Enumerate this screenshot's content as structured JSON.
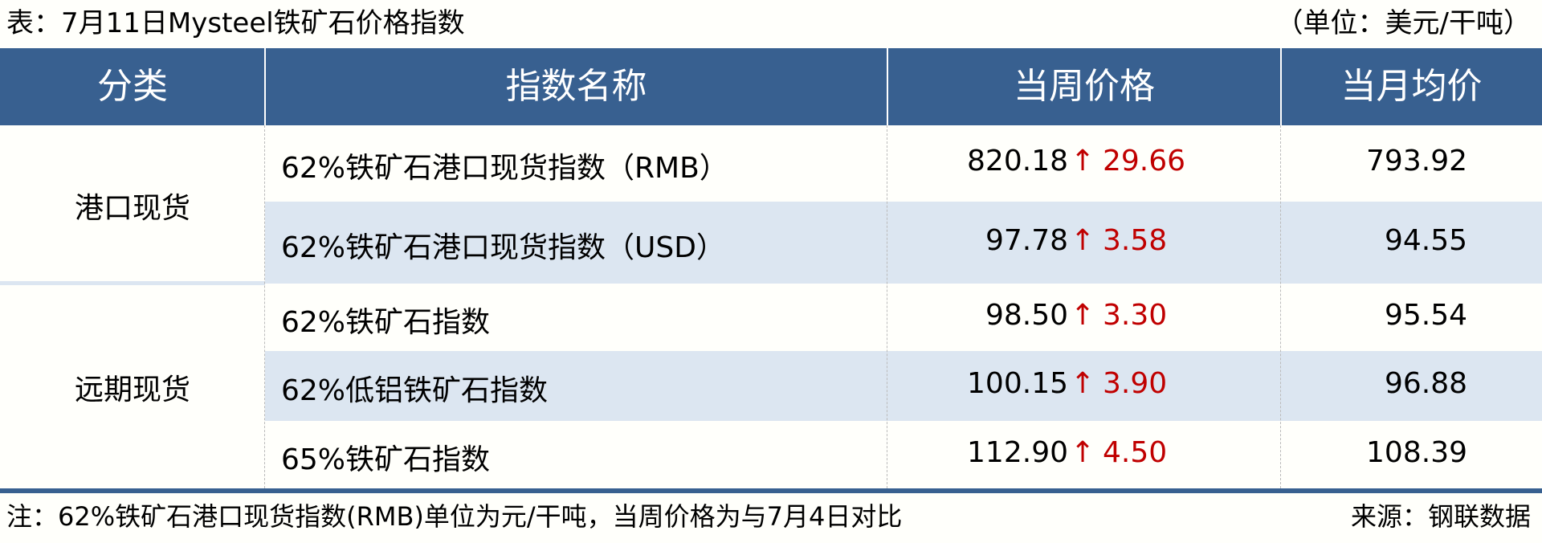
{
  "title": "表：7月11日Mysteel铁矿石价格指数",
  "unit": "（单位：美元/干吨）",
  "header": {
    "category": "分类",
    "index_name": "指数名称",
    "weekly_price": "当周价格",
    "monthly_avg": "当月均价"
  },
  "groups": [
    {
      "label": "港口现货"
    },
    {
      "label": "远期现货"
    }
  ],
  "rows": [
    {
      "name": "62%铁矿石港口现货指数（RMB）",
      "price": "820.18",
      "arrow": "↑",
      "change": "29.66",
      "avg": "793.92"
    },
    {
      "name": "62%铁矿石港口现货指数（USD）",
      "price": "97.78",
      "arrow": "↑",
      "change": "3.58",
      "avg": "94.55"
    },
    {
      "name": "62%铁矿石指数",
      "price": "98.50",
      "arrow": "↑",
      "change": "3.30",
      "avg": "95.54"
    },
    {
      "name": "62%低铝铁矿石指数",
      "price": "100.15",
      "arrow": "↑",
      "change": "3.90",
      "avg": "96.88"
    },
    {
      "name": "65%铁矿石指数",
      "price": "112.90",
      "arrow": "↑",
      "change": "4.50",
      "avg": "108.39"
    }
  ],
  "note": "注：62%铁矿石港口现货指数(RMB)单位为元/干吨，当周价格为与7月4日对比",
  "source": "来源：钢联数据",
  "colors": {
    "header_bg": "#386090",
    "alt_row": "#dce6f1",
    "up": "#c00000"
  }
}
